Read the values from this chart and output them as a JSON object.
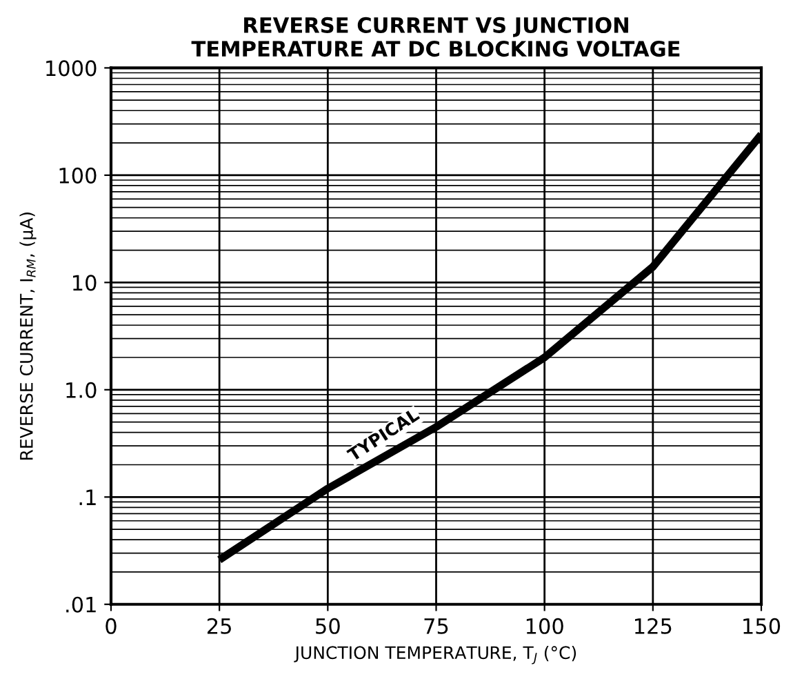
{
  "chart_data": {
    "type": "line",
    "title": "REVERSE CURRENT VS JUNCTION\nTEMPERATURE AT DC BLOCKING VOLTAGE",
    "xlabel": "JUNCTION TEMPERATURE, T$_{J}$ (°C)",
    "ylabel": "REVERSE CURRENT, I$_{RM}$, (μA)",
    "x": [
      25,
      50,
      75,
      100,
      125,
      150
    ],
    "series": [
      {
        "color": "#000000",
        "values": [
          0.026,
          0.12,
          0.45,
          2,
          14,
          240
        ]
      }
    ],
    "log": "y",
    "xlim": [
      0,
      150
    ],
    "ylim": [
      0.01,
      1000
    ],
    "xticks": [
      0,
      25,
      50,
      75,
      100,
      125,
      150
    ],
    "yticks": [
      {
        "value": 0.01,
        "label": ".01"
      },
      {
        "value": 0.1,
        "label": ".1"
      },
      {
        "value": 1,
        "label": "1.0"
      },
      10,
      100,
      1000
    ],
    "grid": true,
    "marker": "none",
    "line_style": "solid",
    "annotations": [
      {
        "text": "TYPICAL",
        "x": 63,
        "y": 0.2
      }
    ]
  }
}
